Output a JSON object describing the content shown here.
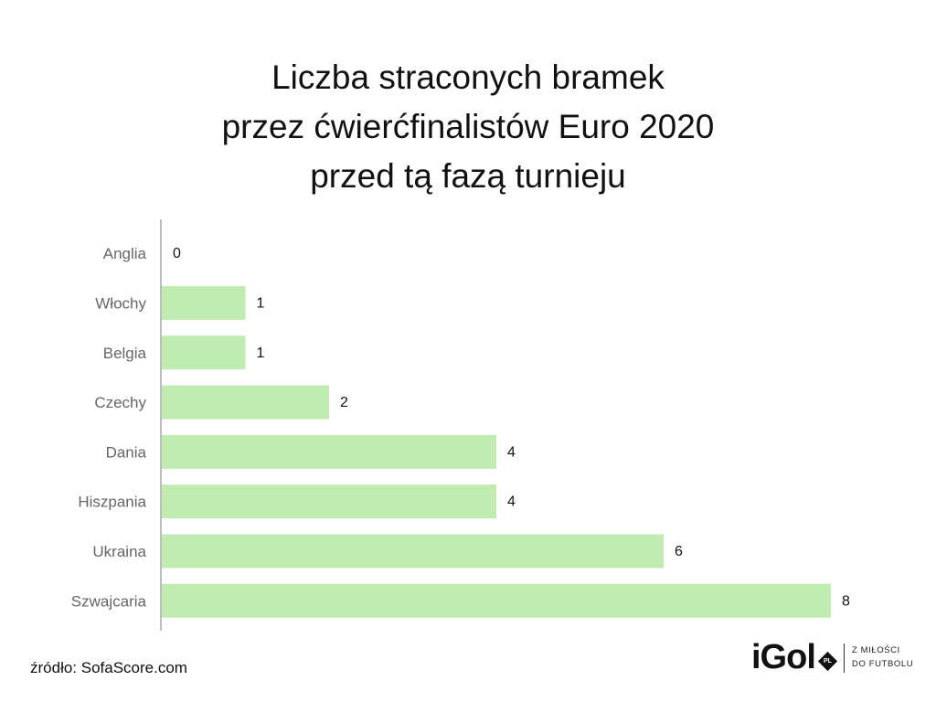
{
  "chart_data": {
    "type": "bar",
    "orientation": "horizontal",
    "title_lines": [
      "Liczba straconych bramek",
      "przez ćwierćfinalistów Euro 2020",
      "przed tą fazą turnieju"
    ],
    "categories": [
      "Anglia",
      "Włochy",
      "Belgia",
      "Czechy",
      "Dania",
      "Hiszpania",
      "Ukraina",
      "Szwajcaria"
    ],
    "values": [
      0,
      1,
      1,
      2,
      4,
      4,
      6,
      8
    ],
    "xlim": [
      0,
      8
    ],
    "grid": false,
    "data_labels": true,
    "bar_color": "#c0ecb2",
    "axis_color": "#bbbbbb",
    "label_color": "#666666"
  },
  "footer": {
    "source": "źródło: SofaScore.com"
  },
  "logo": {
    "word": "iGol",
    "badge": "PL",
    "tagline_1": "Z MIŁOŚCI",
    "tagline_2": "DO FUTBOLU"
  }
}
